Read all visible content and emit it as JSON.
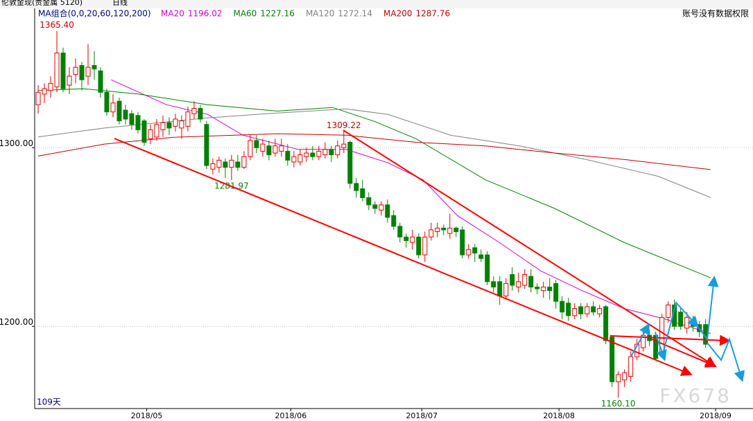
{
  "header": {
    "title": "伦敦金现(贵金属 5120)",
    "period": "日线",
    "indicator": "MA组合(0,0,20,60,120,200)",
    "notice": "账号没有数据权限",
    "days": "109天",
    "watermark": "FX678"
  },
  "chart_data": {
    "type": "candlestick",
    "up_color": "#e00000",
    "down_color": "#008000",
    "xlim": [
      -0.56,
      114.6
    ],
    "ylim": [
      1154,
      1378
    ],
    "yticks": [
      {
        "value": 1200,
        "label": "1200.00"
      },
      {
        "value": 1300,
        "label": "1300.00"
      }
    ],
    "xticks": [
      {
        "value": 17.4,
        "label": "2018/05"
      },
      {
        "value": 40.5,
        "label": "2018/06"
      },
      {
        "value": 61.5,
        "label": "2018/07"
      },
      {
        "value": 83.5,
        "label": "2018/08"
      },
      {
        "value": 108.6,
        "label": "2018/09"
      }
    ],
    "grid": true,
    "open": [
      1324,
      1330,
      1332,
      1334,
      1353,
      1335,
      1341,
      1346,
      1340,
      1346,
      1343,
      1331,
      1320,
      1326,
      1321,
      1319,
      1318,
      1315,
      1305,
      1306,
      1310,
      1314,
      1312,
      1311,
      1312,
      1319,
      1322,
      1313,
      1288,
      1289,
      1292,
      1289,
      1292,
      1289,
      1295,
      1304,
      1298,
      1301,
      1297,
      1298,
      1298,
      1292,
      1292,
      1295,
      1297,
      1295,
      1296,
      1299,
      1296,
      1300,
      1303,
      1280,
      1277,
      1272,
      1268,
      1265,
      1268,
      1262,
      1256,
      1250,
      1247,
      1250,
      1240,
      1250,
      1253,
      1255,
      1252,
      1255,
      1254,
      1240,
      1244,
      1240,
      1240,
      1225,
      1225,
      1217,
      1229,
      1222,
      1223,
      1228,
      1222,
      1220,
      1222,
      1224,
      1214,
      1213,
      1206,
      1211,
      1207,
      1211,
      1207,
      1211,
      1194,
      1169,
      1170,
      1172,
      1183,
      1188,
      1195,
      1195,
      1185,
      1205,
      1212,
      1208,
      1199,
      1204,
      1201,
      1201
    ],
    "high": [
      1335,
      1336,
      1340,
      1365.4,
      1356,
      1345,
      1350,
      1348,
      1358,
      1354,
      1345,
      1333,
      1330,
      1328,
      1324,
      1321,
      1320,
      1316,
      1313,
      1316,
      1318,
      1317,
      1319,
      1318,
      1323,
      1326,
      1324,
      1315,
      1294,
      1295,
      1294,
      1296,
      1296,
      1298,
      1307,
      1307,
      1305,
      1304,
      1305,
      1305,
      1302,
      1298,
      1299,
      1300,
      1301,
      1301,
      1303,
      1301,
      1304,
      1309.22,
      1304,
      1283,
      1282,
      1275,
      1270,
      1270,
      1271,
      1265,
      1258,
      1252,
      1254,
      1252,
      1253,
      1258,
      1258,
      1257,
      1263,
      1256,
      1256,
      1246,
      1246,
      1243,
      1242,
      1228,
      1228,
      1227,
      1233,
      1230,
      1232,
      1232,
      1224,
      1225,
      1227,
      1226,
      1217,
      1216,
      1213,
      1213,
      1213,
      1214,
      1212,
      1212,
      1195,
      1175,
      1176,
      1186,
      1193,
      1197,
      1198,
      1197,
      1207,
      1214,
      1215,
      1210,
      1208,
      1206,
      1203,
      1204
    ],
    "low": [
      1319,
      1325,
      1328,
      1331,
      1331,
      1330,
      1336,
      1332,
      1335,
      1338,
      1328,
      1318,
      1317,
      1313,
      1313,
      1310,
      1308,
      1301,
      1302,
      1304,
      1306,
      1307,
      1309,
      1305,
      1309,
      1316,
      1314,
      1288,
      1285,
      1286,
      1283,
      1281.97,
      1287,
      1288,
      1293,
      1297,
      1295,
      1293,
      1295,
      1295,
      1290,
      1289,
      1290,
      1292,
      1293,
      1293,
      1294,
      1292,
      1294,
      1297,
      1277,
      1272,
      1270,
      1265,
      1263,
      1262,
      1258,
      1254,
      1247,
      1244,
      1243,
      1238,
      1236,
      1248,
      1250,
      1251,
      1249,
      1250,
      1238,
      1238,
      1236,
      1236,
      1223,
      1219,
      1212,
      1215,
      1220,
      1219,
      1221,
      1219,
      1218,
      1216,
      1215,
      1210,
      1204,
      1203,
      1204,
      1204,
      1205,
      1206,
      1205,
      1190,
      1166,
      1160.1,
      1166,
      1169,
      1181,
      1186,
      1189,
      1181,
      1183,
      1202,
      1198,
      1198,
      1196,
      1197,
      1194,
      1188
    ],
    "close": [
      1331,
      1333,
      1336,
      1353,
      1333,
      1340,
      1345,
      1338,
      1345,
      1344,
      1331,
      1320,
      1325,
      1315,
      1316,
      1313,
      1310,
      1303,
      1310,
      1313,
      1314,
      1311,
      1316,
      1315,
      1320,
      1322,
      1316,
      1290,
      1291,
      1293,
      1289,
      1293,
      1289,
      1295,
      1304,
      1300,
      1302,
      1296,
      1301,
      1301,
      1293,
      1295,
      1296,
      1297,
      1295,
      1298,
      1299,
      1296,
      1301,
      1302,
      1280,
      1276,
      1272,
      1268,
      1266,
      1268,
      1261,
      1256,
      1250,
      1248,
      1250,
      1240,
      1250,
      1254,
      1255,
      1254,
      1255,
      1253,
      1240,
      1243,
      1241,
      1238,
      1225,
      1222,
      1217,
      1224,
      1223,
      1225,
      1229,
      1222,
      1221,
      1222,
      1220,
      1214,
      1208,
      1206,
      1210,
      1207,
      1211,
      1208,
      1210,
      1192,
      1169,
      1173,
      1174,
      1183,
      1190,
      1195,
      1192,
      1182,
      1205,
      1212,
      1200,
      1200,
      1205,
      1200,
      1197,
      1190
    ],
    "series": [
      {
        "name": "MA20",
        "color": "#d000d0",
        "x": [
          11.7,
          20.6,
          27.2,
          32.8,
          41.7,
          49.4,
          56.1,
          61.7,
          67.2,
          73.9,
          80.6,
          87.2,
          93.9,
          100.6,
          107.8
        ],
        "values": [
          1338,
          1324,
          1318.6,
          1307,
          1299,
          1299,
          1291.5,
          1282,
          1262,
          1247,
          1231,
          1220,
          1210,
          1204,
          1196.02
        ]
      },
      {
        "name": "MA60",
        "color": "#008000",
        "x": [
          0,
          7.2,
          16.1,
          27.2,
          38.3,
          47.2,
          53.9,
          60.6,
          71.7,
          82.8,
          93.9,
          107.8
        ],
        "values": [
          1332,
          1333,
          1330,
          1324,
          1320.5,
          1322.5,
          1314.7,
          1305,
          1282,
          1266,
          1247,
          1227.16
        ]
      },
      {
        "name": "MA120",
        "color": "#808080",
        "x": [
          0,
          10.6,
          27.2,
          38.3,
          49.4,
          56.1,
          66.1,
          77.2,
          88.3,
          99.4,
          107.8
        ],
        "values": [
          1306,
          1311,
          1316.7,
          1319.4,
          1321.7,
          1318.6,
          1307,
          1301,
          1293,
          1284,
          1272.14
        ]
      },
      {
        "name": "MA200",
        "color": "#c00000",
        "x": [
          0,
          10.6,
          21.7,
          38.3,
          49.4,
          60.6,
          71.7,
          82.8,
          93.9,
          107.8
        ],
        "values": [
          1295.3,
          1302,
          1305.8,
          1307.8,
          1307,
          1303,
          1301,
          1297,
          1293.4,
          1287.76
        ]
      }
    ],
    "annotations": [
      {
        "value": 1365.4,
        "label": "1365.40",
        "x": 3,
        "anchor": "high",
        "color": "#c00000"
      },
      {
        "value": 1309.22,
        "label": "1309.22",
        "x": 49,
        "anchor": "high",
        "color": "#c00000"
      },
      {
        "value": 1281.97,
        "label": "1281.97",
        "x": 31,
        "anchor": "low",
        "color": "#008000"
      },
      {
        "value": 1160.1,
        "label": "1160.10",
        "x": 93,
        "anchor": "low",
        "color": "#008000"
      }
    ]
  }
}
